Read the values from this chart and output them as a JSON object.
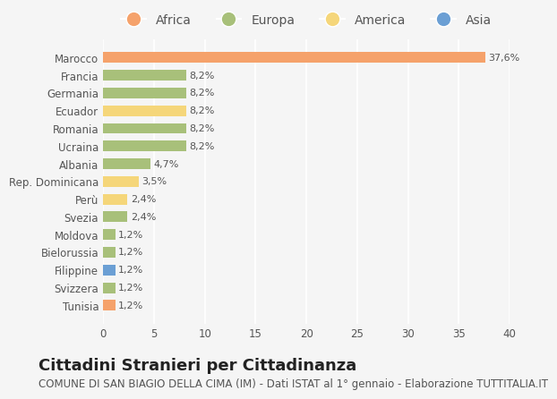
{
  "categories": [
    "Tunisia",
    "Svizzera",
    "Filippine",
    "Bielorussia",
    "Moldova",
    "Svezia",
    "Perù",
    "Rep. Dominicana",
    "Albania",
    "Ucraina",
    "Romania",
    "Ecuador",
    "Germania",
    "Francia",
    "Marocco"
  ],
  "values": [
    1.2,
    1.2,
    1.2,
    1.2,
    1.2,
    2.4,
    2.4,
    3.5,
    4.7,
    8.2,
    8.2,
    8.2,
    8.2,
    8.2,
    37.6
  ],
  "colors": [
    "#f5a26b",
    "#a8c07a",
    "#6b9fd4",
    "#a8c07a",
    "#a8c07a",
    "#a8c07a",
    "#f5d67a",
    "#f5d67a",
    "#a8c07a",
    "#a8c07a",
    "#a8c07a",
    "#f5d67a",
    "#a8c07a",
    "#a8c07a",
    "#f5a26b"
  ],
  "labels": [
    "1,2%",
    "1,2%",
    "1,2%",
    "1,2%",
    "1,2%",
    "2,4%",
    "2,4%",
    "3,5%",
    "4,7%",
    "8,2%",
    "8,2%",
    "8,2%",
    "8,2%",
    "8,2%",
    "37,6%"
  ],
  "legend_labels": [
    "Africa",
    "Europa",
    "America",
    "Asia"
  ],
  "legend_colors": [
    "#f5a26b",
    "#a8c07a",
    "#f5d67a",
    "#6b9fd4"
  ],
  "title": "Cittadini Stranieri per Cittadinanza",
  "subtitle": "COMUNE DI SAN BIAGIO DELLA CIMA (IM) - Dati ISTAT al 1° gennaio - Elaborazione TUTTITALIA.IT",
  "xlim": [
    0,
    40
  ],
  "xticks": [
    0,
    5,
    10,
    15,
    20,
    25,
    30,
    35,
    40
  ],
  "bg_color": "#f5f5f5",
  "bar_height": 0.6,
  "title_fontsize": 13,
  "subtitle_fontsize": 8.5,
  "label_fontsize": 8,
  "tick_fontsize": 8.5,
  "legend_fontsize": 10
}
